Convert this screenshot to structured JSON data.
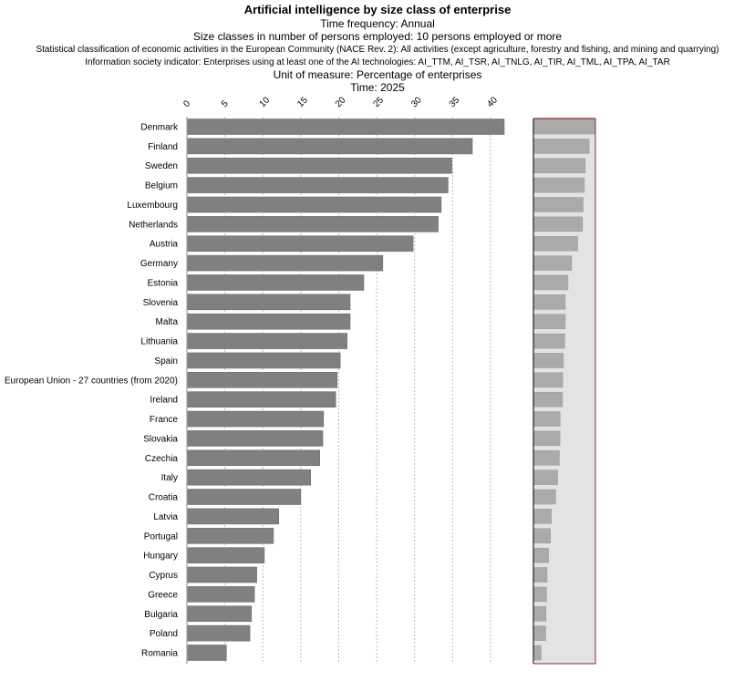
{
  "header": {
    "title": "Artificial intelligence by size class of enterprise",
    "lines": [
      "Time frequency:  Annual",
      "Size classes in number of persons employed:  10 persons employed or more",
      "Statistical classification of economic activities in the European Community (NACE Rev. 2):  All activities (except agriculture, forestry and fishing, and mining and quarrying)",
      "Information society indicator:  Enterprises using at least one of the AI technologies: AI_TTM, AI_TSR, AI_TNLG, AI_TIR, AI_TML, AI_TPA, AI_TAR",
      "Unit of measure:  Percentage of enterprises",
      "Time:  2025"
    ]
  },
  "chart_data": {
    "type": "bar",
    "orientation": "horizontal",
    "title": "Artificial intelligence by size class of enterprise",
    "xlim": [
      0,
      40
    ],
    "x_ticks": [
      "0",
      "5",
      "10",
      "15",
      "20",
      "25",
      "30",
      "35",
      "40"
    ],
    "grid": true,
    "categories": [
      "Denmark",
      "Finland",
      "Sweden",
      "Belgium",
      "Luxembourg",
      "Netherlands",
      "Austria",
      "Germany",
      "Estonia",
      "Slovenia",
      "Malta",
      "Lithuania",
      "Spain",
      "European Union - 27 countries (from 2020)",
      "Ireland",
      "France",
      "Slovakia",
      "Czechia",
      "Italy",
      "Croatia",
      "Latvia",
      "Portugal",
      "Hungary",
      "Cyprus",
      "Greece",
      "Bulgaria",
      "Poland",
      "Romania"
    ],
    "values": [
      41.8,
      37.6,
      34.9,
      34.4,
      33.5,
      33.1,
      29.8,
      25.8,
      23.3,
      21.5,
      21.5,
      21.1,
      20.2,
      19.8,
      19.6,
      18.0,
      17.9,
      17.5,
      16.3,
      15.0,
      12.1,
      11.4,
      10.2,
      9.2,
      8.9,
      8.5,
      8.3,
      5.2
    ],
    "bar_color": "#808080",
    "overview_bar_color": "#aaaaaa",
    "overview_bg": "#e3e3e3"
  }
}
